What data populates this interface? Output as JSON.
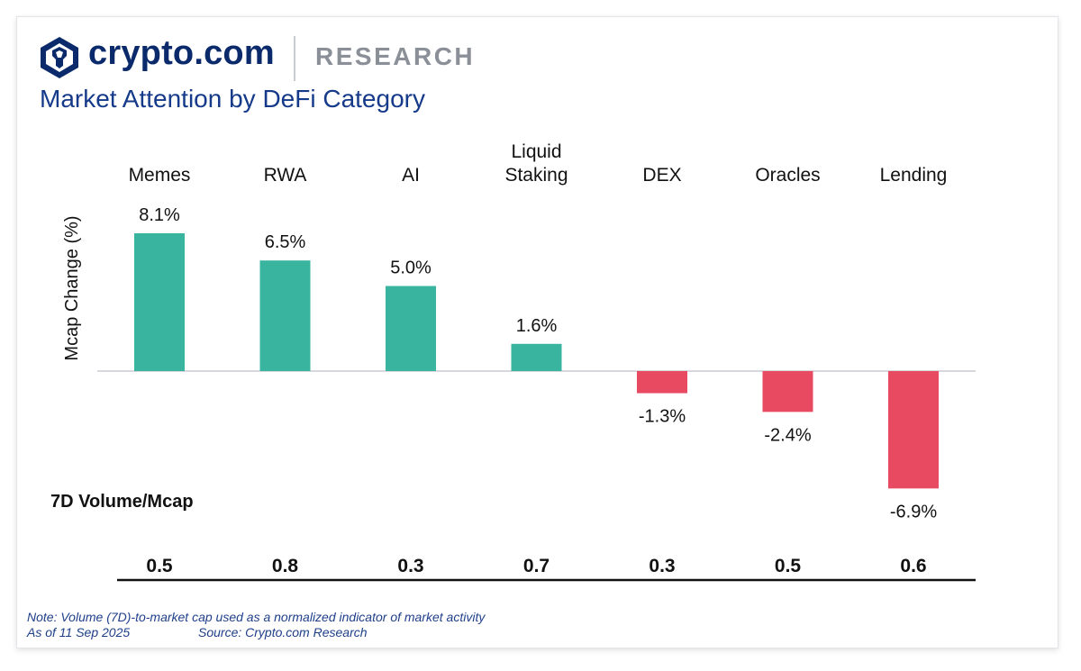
{
  "header": {
    "brand": "crypto.com",
    "section": "RESEARCH",
    "title": "Market Attention by DeFi Category"
  },
  "colors": {
    "positive": "#38b49f",
    "negative": "#e84a62",
    "brand": "#0a2a6b"
  },
  "chart_data": {
    "type": "bar",
    "title": "Market Attention by DeFi Category",
    "ylabel": "Mcap Change (%)",
    "categories": [
      [
        "Memes"
      ],
      [
        "RWA"
      ],
      [
        "AI"
      ],
      [
        "Liquid",
        "Staking"
      ],
      [
        "DEX"
      ],
      [
        "Oracles"
      ],
      [
        "Lending"
      ]
    ],
    "values": [
      8.1,
      6.5,
      5.0,
      1.6,
      -1.3,
      -2.4,
      -6.9
    ],
    "value_labels": [
      "8.1%",
      "6.5%",
      "5.0%",
      "1.6%",
      "-1.3%",
      "-2.4%",
      "-6.9%"
    ],
    "ylim": [
      -6.9,
      8.1
    ],
    "secondary_row": {
      "label": "7D Volume/Mcap",
      "values": [
        "0.5",
        "0.8",
        "0.3",
        "0.7",
        "0.3",
        "0.5",
        "0.6"
      ]
    }
  },
  "footer": {
    "note": "Note: Volume (7D)-to-market cap used as a normalized indicator of market activity",
    "as_of": "As of 11 Sep 2025",
    "source": "Source: Crypto.com Research"
  }
}
